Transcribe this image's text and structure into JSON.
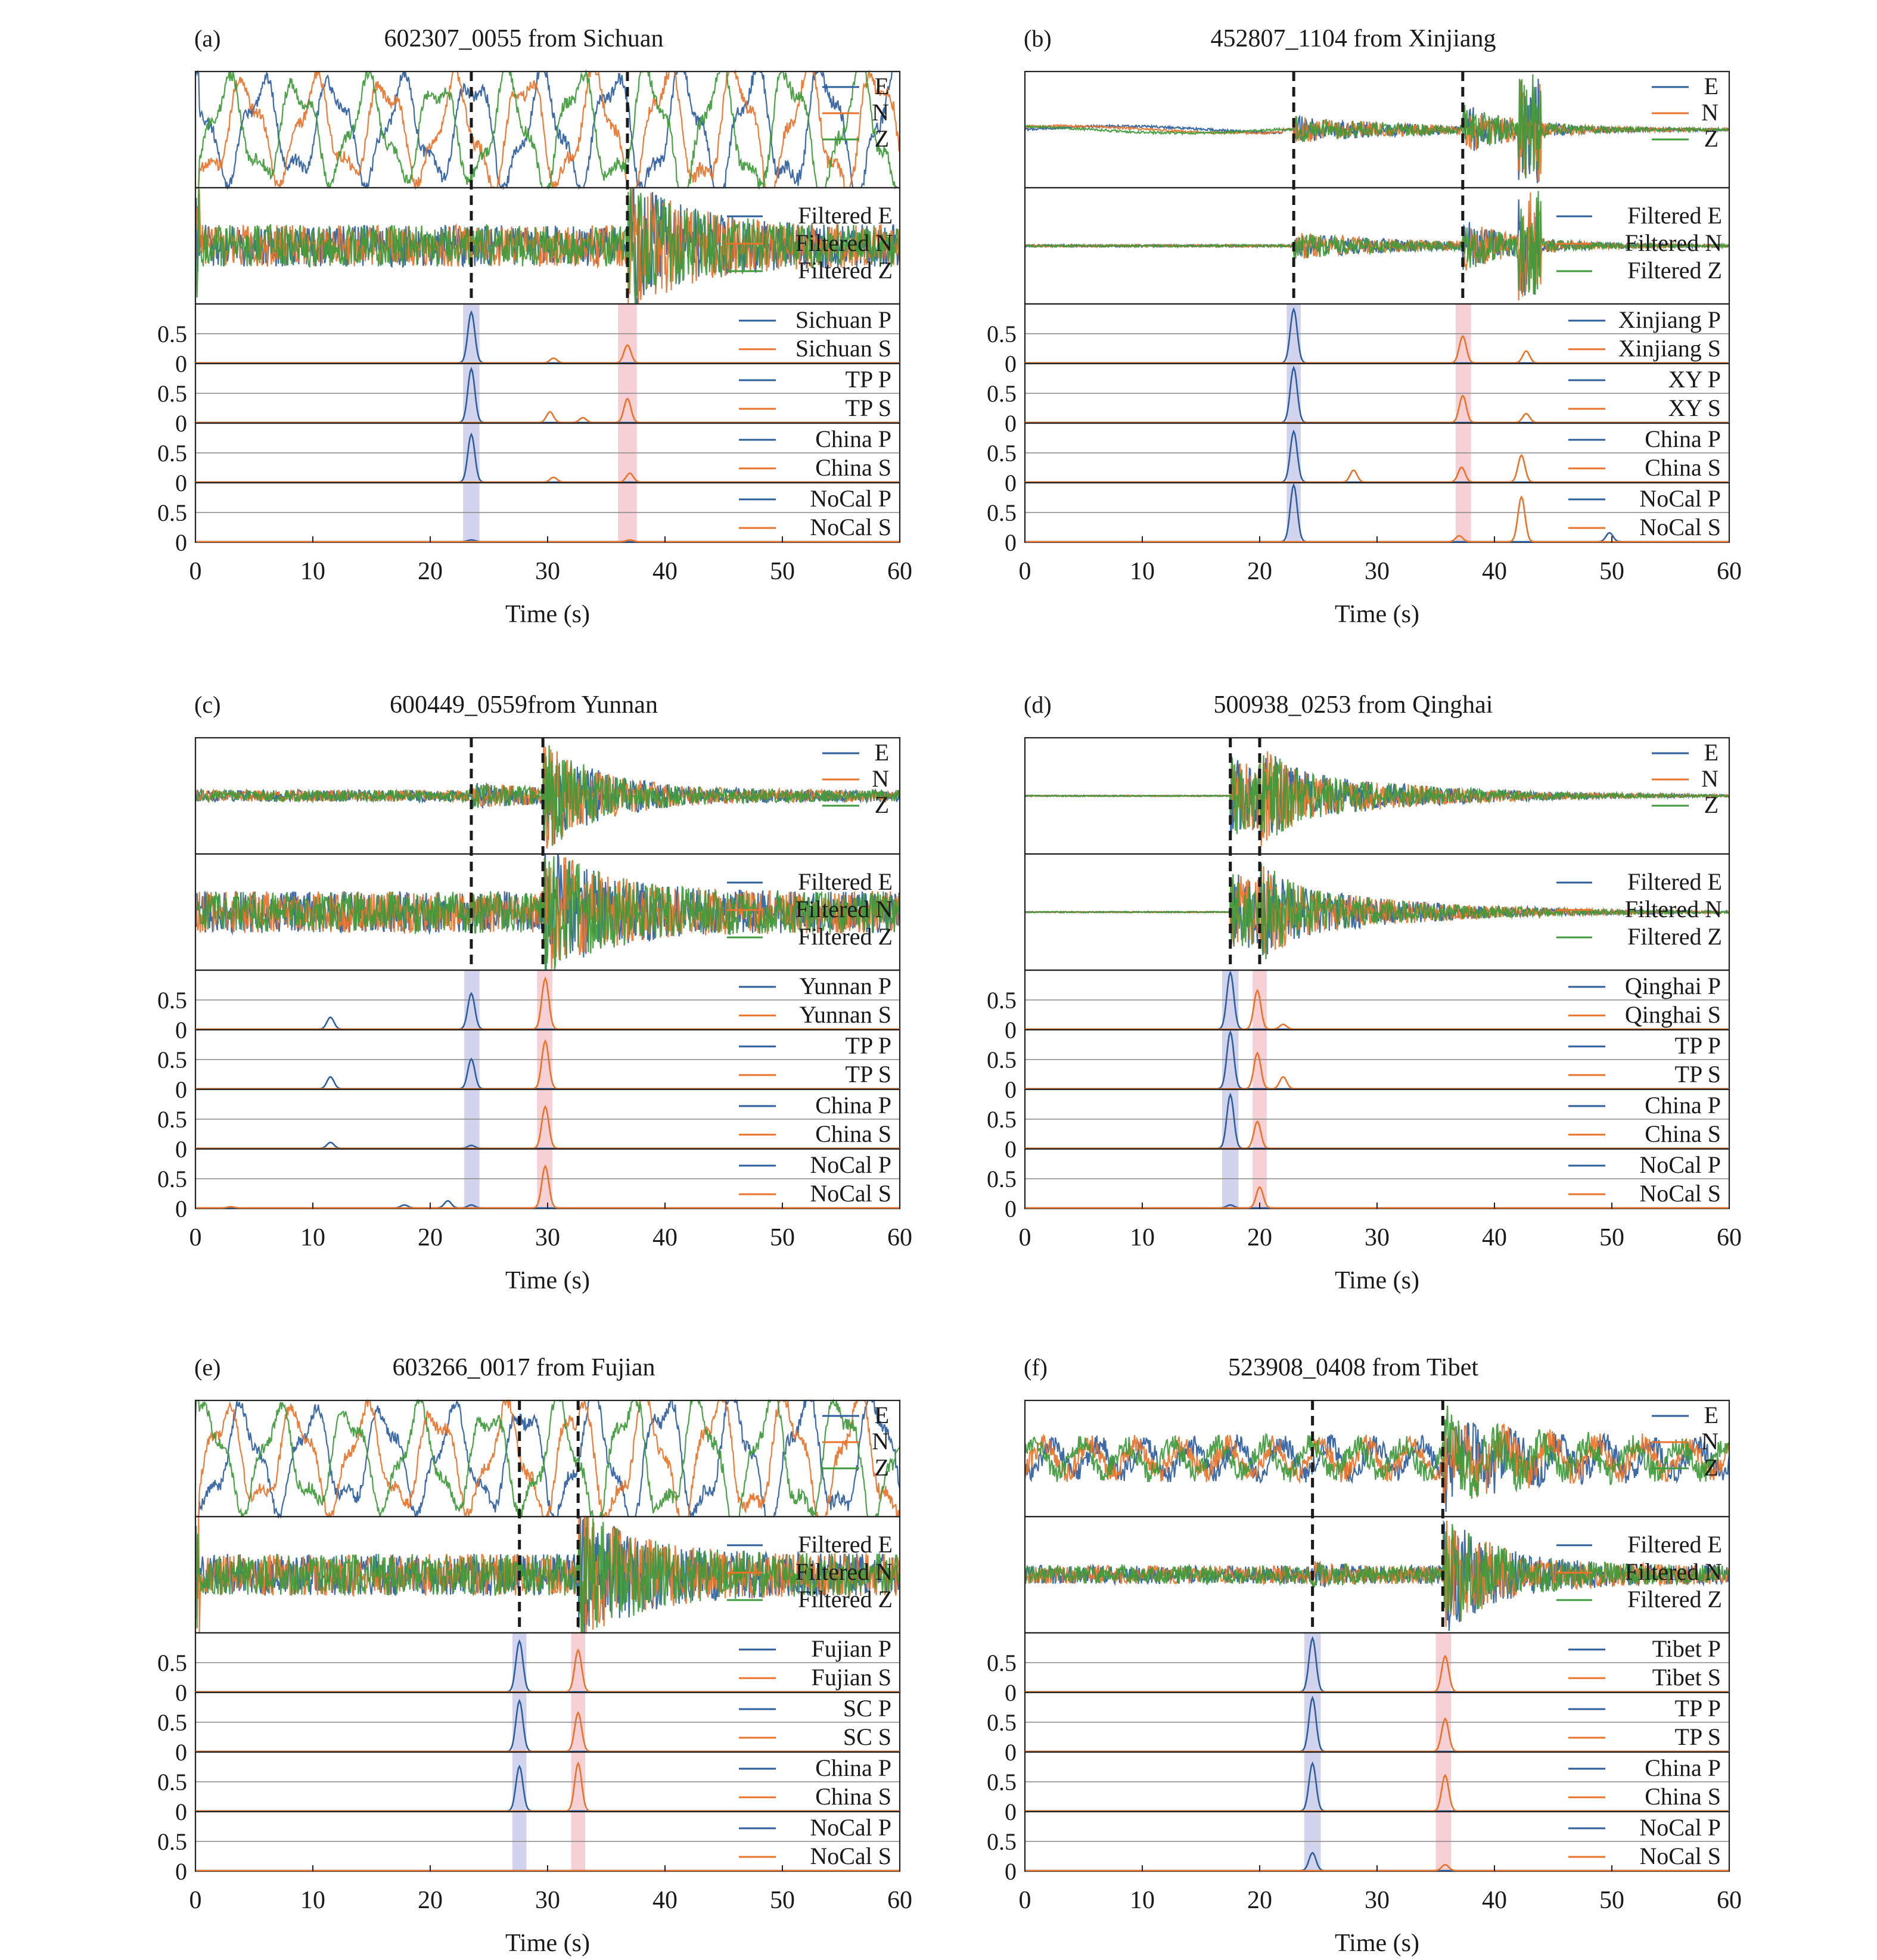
{
  "figure": {
    "x_ticks": [
      "0",
      "10",
      "20",
      "30",
      "40",
      "50",
      "60"
    ],
    "xlabel": "Time (s)",
    "prob_ticks": [
      "0.5",
      "0"
    ],
    "raw_legend": [
      "E",
      "N",
      "Z"
    ],
    "filtered_legend": [
      "Filtered E",
      "Filtered N",
      "Filtered Z"
    ],
    "colors": {
      "E": "#2e5e9e",
      "N": "#e8732a",
      "Z": "#3f9a3a",
      "P": "#2e5e9e",
      "S": "#e8732a",
      "p_window": "#c9cde9",
      "s_window": "#f5c8cc",
      "pick_line": "#1a1a1a"
    }
  },
  "chart_data": [
    {
      "type": "line",
      "panel": "(a)",
      "title": "602307_0055 from Sichuan",
      "xlabel": "Time (s)",
      "xlim": [
        0,
        60
      ],
      "ylim": [
        0,
        1
      ],
      "waveform_style": "low-frequency",
      "p_pick": 23.5,
      "s_pick": 36.8,
      "p_window": [
        22.8,
        24.2
      ],
      "s_window": [
        36.0,
        37.6
      ],
      "models": [
        {
          "p_label": "Sichuan P",
          "s_label": "Sichuan S",
          "p_peaks": [
            {
              "t": 23.5,
              "h": 0.85
            }
          ],
          "s_peaks": [
            {
              "t": 30.5,
              "h": 0.08
            },
            {
              "t": 36.8,
              "h": 0.3
            }
          ]
        },
        {
          "p_label": "TP P",
          "s_label": "TP S",
          "p_peaks": [
            {
              "t": 23.5,
              "h": 0.9
            }
          ],
          "s_peaks": [
            {
              "t": 30.2,
              "h": 0.18
            },
            {
              "t": 33.0,
              "h": 0.08
            },
            {
              "t": 36.8,
              "h": 0.4
            }
          ]
        },
        {
          "p_label": "China P",
          "s_label": "China S",
          "p_peaks": [
            {
              "t": 23.5,
              "h": 0.8
            }
          ],
          "s_peaks": [
            {
              "t": 30.5,
              "h": 0.08
            },
            {
              "t": 37.0,
              "h": 0.15
            }
          ]
        },
        {
          "p_label": "NoCal P",
          "s_label": "NoCal S",
          "p_peaks": [
            {
              "t": 23.5,
              "h": 0.03
            }
          ],
          "s_peaks": [
            {
              "t": 37.0,
              "h": 0.03
            }
          ]
        }
      ]
    },
    {
      "type": "line",
      "panel": "(b)",
      "title": "452807_1104 from Xinjiang",
      "xlabel": "Time (s)",
      "xlim": [
        0,
        60
      ],
      "ylim": [
        0,
        1
      ],
      "waveform_style": "burst-late",
      "p_pick": 22.9,
      "s_pick": 37.3,
      "p_window": [
        22.3,
        23.5
      ],
      "s_window": [
        36.7,
        38.0
      ],
      "models": [
        {
          "p_label": "Xinjiang P",
          "s_label": "Xinjiang S",
          "p_peaks": [
            {
              "t": 22.9,
              "h": 0.9
            }
          ],
          "s_peaks": [
            {
              "t": 37.3,
              "h": 0.45
            },
            {
              "t": 42.7,
              "h": 0.2
            }
          ]
        },
        {
          "p_label": "XY P",
          "s_label": "XY S",
          "p_peaks": [
            {
              "t": 22.9,
              "h": 0.92
            }
          ],
          "s_peaks": [
            {
              "t": 37.3,
              "h": 0.45
            },
            {
              "t": 42.7,
              "h": 0.15
            }
          ]
        },
        {
          "p_label": "China P",
          "s_label": "China S",
          "p_peaks": [
            {
              "t": 22.9,
              "h": 0.85
            }
          ],
          "s_peaks": [
            {
              "t": 28.0,
              "h": 0.2
            },
            {
              "t": 37.2,
              "h": 0.25
            },
            {
              "t": 42.3,
              "h": 0.45
            }
          ]
        },
        {
          "p_label": "NoCal P",
          "s_label": "NoCal S",
          "p_peaks": [
            {
              "t": 22.9,
              "h": 0.95
            },
            {
              "t": 49.8,
              "h": 0.15
            }
          ],
          "s_peaks": [
            {
              "t": 37.0,
              "h": 0.1
            },
            {
              "t": 42.3,
              "h": 0.75
            }
          ]
        }
      ]
    },
    {
      "type": "line",
      "panel": "(c)",
      "title": "600449_0559from Yunnan",
      "xlabel": "Time (s)",
      "xlim": [
        0,
        60
      ],
      "ylim": [
        0,
        1
      ],
      "waveform_style": "burst",
      "p_pick": 23.5,
      "s_pick": 29.6,
      "p_window": [
        22.9,
        24.2
      ],
      "s_window": [
        29.1,
        30.4
      ],
      "models": [
        {
          "p_label": "Yunnan P",
          "s_label": "Yunnan S",
          "p_peaks": [
            {
              "t": 11.5,
              "h": 0.2
            },
            {
              "t": 23.5,
              "h": 0.6
            }
          ],
          "s_peaks": [
            {
              "t": 29.8,
              "h": 0.85
            }
          ]
        },
        {
          "p_label": "TP P",
          "s_label": "TP S",
          "p_peaks": [
            {
              "t": 11.5,
              "h": 0.2
            },
            {
              "t": 23.5,
              "h": 0.5
            }
          ],
          "s_peaks": [
            {
              "t": 29.8,
              "h": 0.8
            }
          ]
        },
        {
          "p_label": "China P",
          "s_label": "China S",
          "p_peaks": [
            {
              "t": 11.5,
              "h": 0.1
            },
            {
              "t": 23.5,
              "h": 0.05
            }
          ],
          "s_peaks": [
            {
              "t": 29.8,
              "h": 0.7
            }
          ]
        },
        {
          "p_label": "NoCal P",
          "s_label": "NoCal S",
          "p_peaks": [
            {
              "t": 17.8,
              "h": 0.05
            },
            {
              "t": 21.5,
              "h": 0.12
            },
            {
              "t": 23.5,
              "h": 0.05
            }
          ],
          "s_peaks": [
            {
              "t": 3.0,
              "h": 0.02
            },
            {
              "t": 29.8,
              "h": 0.7
            }
          ]
        }
      ]
    },
    {
      "type": "line",
      "panel": "(d)",
      "title": "500938_0253 from Qinghai",
      "xlabel": "Time (s)",
      "xlim": [
        0,
        60
      ],
      "ylim": [
        0,
        1
      ],
      "waveform_style": "flat-burst",
      "p_pick": 17.5,
      "s_pick": 20.0,
      "p_window": [
        16.8,
        18.2
      ],
      "s_window": [
        19.4,
        20.6
      ],
      "models": [
        {
          "p_label": "Qinghai P",
          "s_label": "Qinghai S",
          "p_peaks": [
            {
              "t": 17.5,
              "h": 0.95
            }
          ],
          "s_peaks": [
            {
              "t": 19.8,
              "h": 0.65
            },
            {
              "t": 22.0,
              "h": 0.08
            }
          ]
        },
        {
          "p_label": "TP P",
          "s_label": "TP S",
          "p_peaks": [
            {
              "t": 17.5,
              "h": 0.95
            }
          ],
          "s_peaks": [
            {
              "t": 19.8,
              "h": 0.6
            },
            {
              "t": 22.0,
              "h": 0.2
            }
          ]
        },
        {
          "p_label": "China P",
          "s_label": "China S",
          "p_peaks": [
            {
              "t": 17.5,
              "h": 0.9
            }
          ],
          "s_peaks": [
            {
              "t": 19.8,
              "h": 0.45
            }
          ]
        },
        {
          "p_label": "NoCal P",
          "s_label": "NoCal S",
          "p_peaks": [
            {
              "t": 17.5,
              "h": 0.05
            }
          ],
          "s_peaks": [
            {
              "t": 20.0,
              "h": 0.35
            }
          ]
        }
      ]
    },
    {
      "type": "line",
      "panel": "(e)",
      "title": "603266_0017 from Fujian",
      "xlabel": "Time (s)",
      "xlim": [
        0,
        60
      ],
      "ylim": [
        0,
        1
      ],
      "waveform_style": "low-frequency",
      "p_pick": 27.6,
      "s_pick": 32.6,
      "p_window": [
        27.0,
        28.2
      ],
      "s_window": [
        32.0,
        33.2
      ],
      "models": [
        {
          "p_label": "Fujian P",
          "s_label": "Fujian S",
          "p_peaks": [
            {
              "t": 27.6,
              "h": 0.85
            }
          ],
          "s_peaks": [
            {
              "t": 32.6,
              "h": 0.7
            }
          ]
        },
        {
          "p_label": "SC P",
          "s_label": "SC S",
          "p_peaks": [
            {
              "t": 27.6,
              "h": 0.85
            }
          ],
          "s_peaks": [
            {
              "t": 32.6,
              "h": 0.65
            }
          ]
        },
        {
          "p_label": "China P",
          "s_label": "China S",
          "p_peaks": [
            {
              "t": 27.6,
              "h": 0.75
            }
          ],
          "s_peaks": [
            {
              "t": 32.6,
              "h": 0.8
            }
          ]
        },
        {
          "p_label": "NoCal P",
          "s_label": "NoCal S",
          "p_peaks": [],
          "s_peaks": []
        }
      ]
    },
    {
      "type": "line",
      "panel": "(f)",
      "title": "523908_0408 from Tibet",
      "xlabel": "Time (s)",
      "xlim": [
        0,
        60
      ],
      "ylim": [
        0,
        1
      ],
      "waveform_style": "noisy",
      "p_pick": 24.5,
      "s_pick": 35.6,
      "p_window": [
        23.8,
        25.2
      ],
      "s_window": [
        35.0,
        36.3
      ],
      "models": [
        {
          "p_label": "Tibet P",
          "s_label": "Tibet S",
          "p_peaks": [
            {
              "t": 24.5,
              "h": 0.9
            }
          ],
          "s_peaks": [
            {
              "t": 35.8,
              "h": 0.6
            }
          ]
        },
        {
          "p_label": "TP P",
          "s_label": "TP S",
          "p_peaks": [
            {
              "t": 24.5,
              "h": 0.9
            }
          ],
          "s_peaks": [
            {
              "t": 35.8,
              "h": 0.55
            }
          ]
        },
        {
          "p_label": "China P",
          "s_label": "China S",
          "p_peaks": [
            {
              "t": 24.5,
              "h": 0.8
            }
          ],
          "s_peaks": [
            {
              "t": 35.8,
              "h": 0.6
            }
          ]
        },
        {
          "p_label": "NoCal P",
          "s_label": "NoCal S",
          "p_peaks": [
            {
              "t": 24.5,
              "h": 0.3
            }
          ],
          "s_peaks": [
            {
              "t": 35.8,
              "h": 0.1
            }
          ]
        }
      ]
    }
  ]
}
